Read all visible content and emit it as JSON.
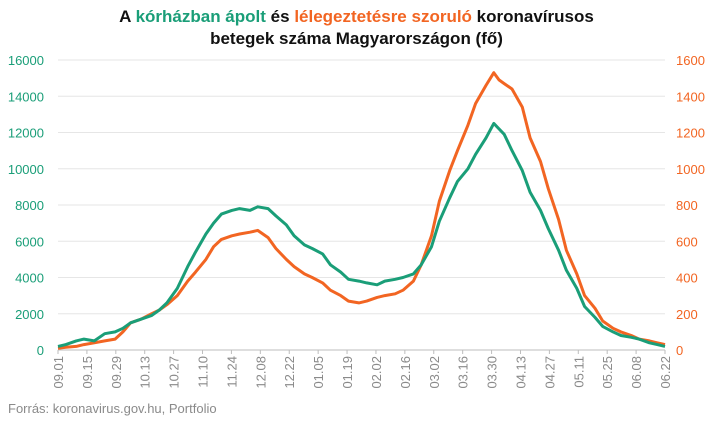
{
  "title": {
    "line1_prefix": "A",
    "line1_green": "kórházban ápolt",
    "line1_mid": "és",
    "line1_orange": "lélegeztetésre szoruló",
    "line1_suffix": "koronavírusos",
    "line2": "betegek száma Magyarországon  (fő)"
  },
  "source": "Forrás: koronavirus.gov.hu, Portfolio",
  "colors": {
    "hospitalized": "#1a9e78",
    "ventilated": "#f26522",
    "grid": "#e6e6e6",
    "xtick": "#8a8a8a"
  },
  "chart_data": {
    "type": "line",
    "x_labels": [
      "09.01",
      "09.15",
      "09.29",
      "10.13",
      "10.27",
      "11.10",
      "11.24",
      "12.08",
      "12.22",
      "01.05",
      "01.19",
      "02.02",
      "02.16",
      "03.02",
      "03.16",
      "03.30",
      "04.13",
      "04.27",
      "05.11",
      "05.25",
      "06.08",
      "06.22"
    ],
    "left_axis": {
      "ylim": [
        0,
        16000
      ],
      "ticks": [
        "0",
        "2000",
        "4000",
        "6000",
        "8000",
        "10000",
        "12000",
        "14000",
        "16000"
      ]
    },
    "right_axis": {
      "ylim": [
        0,
        1600
      ],
      "ticks": [
        "0",
        "200",
        "400",
        "600",
        "800",
        "1000",
        "1200",
        "1400",
        "1600"
      ]
    },
    "series": [
      {
        "axis": "left",
        "points": [
          [
            0,
            200
          ],
          [
            3,
            300
          ],
          [
            7,
            500
          ],
          [
            10,
            600
          ],
          [
            14,
            500
          ],
          [
            18,
            900
          ],
          [
            22,
            1000
          ],
          [
            25,
            1200
          ],
          [
            28,
            1500
          ],
          [
            32,
            1700
          ],
          [
            36,
            1900
          ],
          [
            39,
            2200
          ],
          [
            42,
            2600
          ],
          [
            46,
            3400
          ],
          [
            50,
            4600
          ],
          [
            53,
            5400
          ],
          [
            57,
            6400
          ],
          [
            60,
            7000
          ],
          [
            63,
            7500
          ],
          [
            67,
            7700
          ],
          [
            70,
            7800
          ],
          [
            74,
            7700
          ],
          [
            77,
            7900
          ],
          [
            81,
            7800
          ],
          [
            84,
            7400
          ],
          [
            88,
            6900
          ],
          [
            91,
            6300
          ],
          [
            95,
            5800
          ],
          [
            98,
            5600
          ],
          [
            102,
            5300
          ],
          [
            105,
            4700
          ],
          [
            109,
            4300
          ],
          [
            112,
            3900
          ],
          [
            116,
            3800
          ],
          [
            119,
            3700
          ],
          [
            123,
            3600
          ],
          [
            126,
            3800
          ],
          [
            130,
            3900
          ],
          [
            133,
            4000
          ],
          [
            137,
            4200
          ],
          [
            140,
            4700
          ],
          [
            144,
            5700
          ],
          [
            147,
            7100
          ],
          [
            151,
            8400
          ],
          [
            154,
            9300
          ],
          [
            158,
            10000
          ],
          [
            161,
            10800
          ],
          [
            165,
            11700
          ],
          [
            168,
            12500
          ],
          [
            170,
            12200
          ],
          [
            172,
            11900
          ],
          [
            175,
            11000
          ],
          [
            179,
            9900
          ],
          [
            182,
            8700
          ],
          [
            186,
            7700
          ],
          [
            189,
            6700
          ],
          [
            193,
            5500
          ],
          [
            196,
            4400
          ],
          [
            200,
            3400
          ],
          [
            203,
            2400
          ],
          [
            207,
            1800
          ],
          [
            210,
            1300
          ],
          [
            214,
            1000
          ],
          [
            217,
            800
          ],
          [
            221,
            700
          ],
          [
            224,
            600
          ],
          [
            228,
            400
          ],
          [
            231,
            300
          ],
          [
            234,
            200
          ]
        ]
      },
      {
        "axis": "right",
        "points": [
          [
            0,
            10
          ],
          [
            3,
            15
          ],
          [
            7,
            20
          ],
          [
            10,
            30
          ],
          [
            14,
            40
          ],
          [
            18,
            50
          ],
          [
            22,
            60
          ],
          [
            25,
            100
          ],
          [
            28,
            150
          ],
          [
            32,
            170
          ],
          [
            36,
            200
          ],
          [
            39,
            220
          ],
          [
            42,
            250
          ],
          [
            46,
            300
          ],
          [
            50,
            380
          ],
          [
            53,
            430
          ],
          [
            57,
            500
          ],
          [
            60,
            570
          ],
          [
            63,
            610
          ],
          [
            67,
            630
          ],
          [
            70,
            640
          ],
          [
            74,
            650
          ],
          [
            77,
            660
          ],
          [
            81,
            620
          ],
          [
            84,
            560
          ],
          [
            88,
            500
          ],
          [
            91,
            460
          ],
          [
            95,
            420
          ],
          [
            98,
            400
          ],
          [
            102,
            370
          ],
          [
            105,
            330
          ],
          [
            109,
            300
          ],
          [
            112,
            270
          ],
          [
            116,
            260
          ],
          [
            119,
            270
          ],
          [
            123,
            290
          ],
          [
            126,
            300
          ],
          [
            130,
            310
          ],
          [
            133,
            330
          ],
          [
            137,
            380
          ],
          [
            140,
            470
          ],
          [
            144,
            630
          ],
          [
            147,
            820
          ],
          [
            151,
            990
          ],
          [
            154,
            1100
          ],
          [
            158,
            1240
          ],
          [
            161,
            1360
          ],
          [
            165,
            1460
          ],
          [
            168,
            1530
          ],
          [
            170,
            1490
          ],
          [
            172,
            1470
          ],
          [
            175,
            1440
          ],
          [
            179,
            1340
          ],
          [
            182,
            1170
          ],
          [
            186,
            1040
          ],
          [
            189,
            890
          ],
          [
            193,
            720
          ],
          [
            196,
            550
          ],
          [
            200,
            420
          ],
          [
            203,
            300
          ],
          [
            207,
            230
          ],
          [
            210,
            160
          ],
          [
            214,
            120
          ],
          [
            217,
            100
          ],
          [
            221,
            80
          ],
          [
            224,
            60
          ],
          [
            228,
            50
          ],
          [
            231,
            40
          ],
          [
            234,
            30
          ]
        ]
      }
    ]
  }
}
